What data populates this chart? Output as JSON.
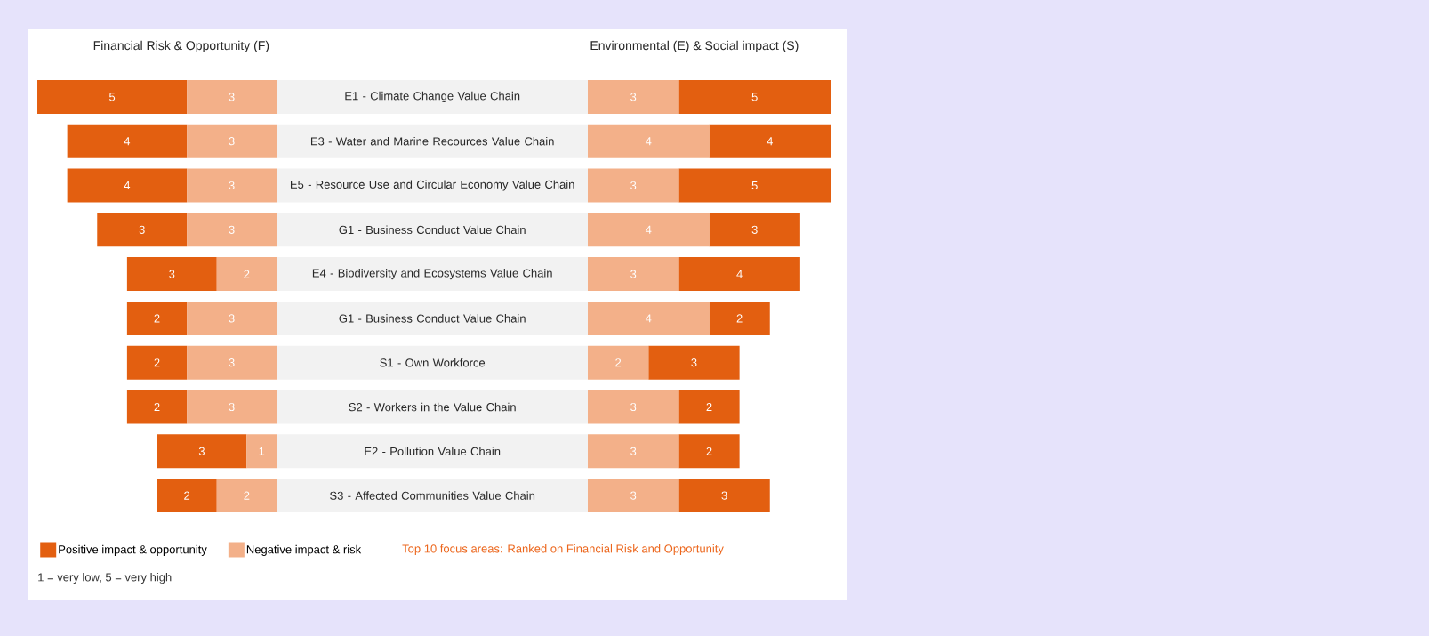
{
  "chart_data": [
    {
      "type": "bar",
      "orientation": "horizontal",
      "stacked": true,
      "title": "Financial Risk & Opportunity (F)",
      "categories": [
        "E1 - Climate Change Value Chain",
        "E3 - Water and Marine Recources Value Chain",
        "E5 - Resource Use and Circular Economy Value Chain",
        "G1 - Business Conduct Value Chain",
        "E4 - Biodiversity and Ecosystems Value Chain",
        "G1 - Business Conduct Value Chain",
        "S1 - Own Workforce",
        "S2 - Workers in the Value Chain",
        "E2 - Pollution Value Chain",
        "S3 - Affected Communities Value Chain"
      ],
      "series": [
        {
          "name": "Negative impact & risk",
          "color": "#f3b089",
          "values": [
            3,
            3,
            3,
            3,
            2,
            3,
            3,
            3,
            1,
            2
          ]
        },
        {
          "name": "Positive impact & opportunity",
          "color": "#e35f10",
          "values": [
            5,
            4,
            4,
            3,
            3,
            2,
            2,
            2,
            3,
            2
          ]
        }
      ],
      "data_labels": true,
      "legend": "bottom",
      "annotations": [
        "Top 10 focus areas: Ranked on Financial Risk and Opportunity",
        "1 = very low, 5 = very high"
      ]
    },
    {
      "type": "bar",
      "orientation": "horizontal",
      "stacked": true,
      "title": "Environmental (E) & Social impact (S)",
      "categories": [
        null,
        null,
        null,
        null,
        null,
        null,
        null,
        null,
        null,
        null
      ],
      "series": [
        {
          "color": "#f3b089",
          "values": [
            3,
            4,
            3,
            4,
            3,
            4,
            2,
            3,
            3,
            3
          ]
        },
        {
          "color": "#e35f10",
          "values": [
            5,
            4,
            5,
            3,
            4,
            2,
            3,
            2,
            2,
            3
          ]
        }
      ],
      "data_labels": true
    }
  ]
}
